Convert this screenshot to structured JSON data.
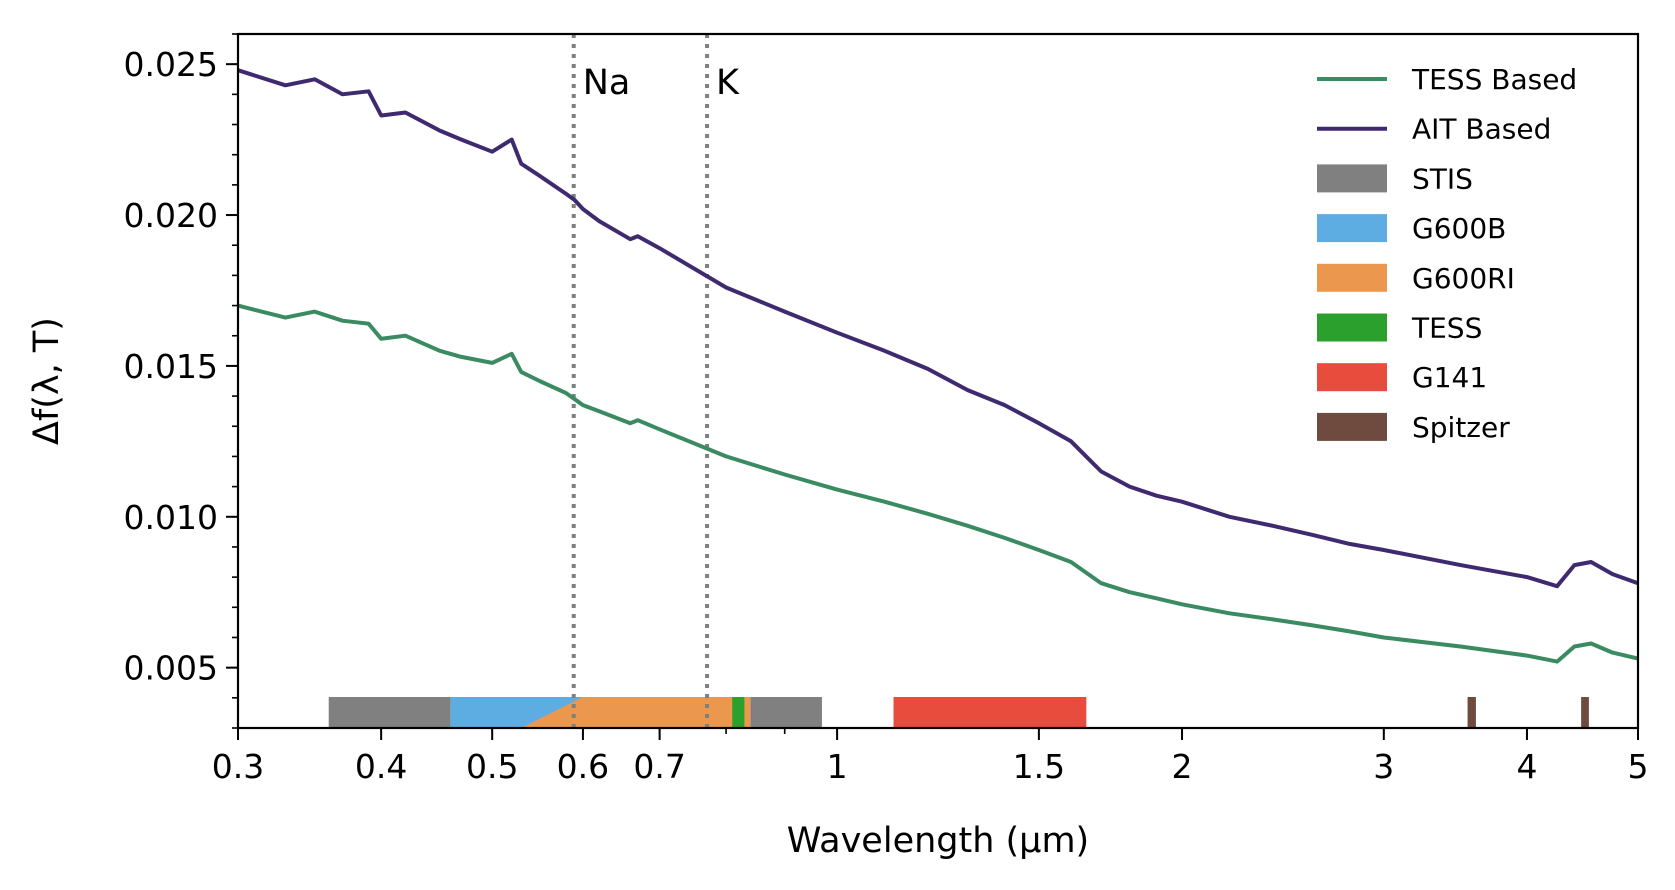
{
  "chart_data": {
    "type": "line",
    "title": "",
    "xlabel": "Wavelength (μm)",
    "ylabel": "Δf(λ, T)",
    "xscale": "log",
    "xlim": [
      0.3,
      5
    ],
    "ylim": [
      0.003,
      0.026
    ],
    "x_ticks": [
      0.3,
      0.4,
      0.5,
      0.6,
      0.7,
      1,
      1.5,
      2,
      3,
      4,
      5
    ],
    "x_tick_labels": [
      "0.3",
      "0.4",
      "0.5",
      "0.6",
      "0.7",
      "1",
      "1.5",
      "2",
      "3",
      "4",
      "5"
    ],
    "y_ticks": [
      0.005,
      0.01,
      0.015,
      0.02,
      0.025
    ],
    "y_tick_labels": [
      "0.005",
      "0.010",
      "0.015",
      "0.020",
      "0.025"
    ],
    "grid": false,
    "legend_position": "top-right",
    "series": [
      {
        "name": "AIT Based",
        "color": "#3f2a70",
        "x": [
          0.3,
          0.33,
          0.35,
          0.37,
          0.39,
          0.4,
          0.42,
          0.45,
          0.47,
          0.5,
          0.52,
          0.53,
          0.55,
          0.58,
          0.59,
          0.6,
          0.62,
          0.66,
          0.67,
          0.7,
          0.8,
          0.9,
          1.0,
          1.1,
          1.2,
          1.3,
          1.4,
          1.5,
          1.6,
          1.7,
          1.8,
          1.9,
          2.0,
          2.2,
          2.4,
          2.6,
          2.8,
          3.0,
          3.5,
          4.0,
          4.25,
          4.4,
          4.55,
          4.75,
          5.0
        ],
        "y": [
          0.0248,
          0.0243,
          0.0245,
          0.024,
          0.0241,
          0.0233,
          0.0234,
          0.0228,
          0.0225,
          0.0221,
          0.0225,
          0.0217,
          0.0213,
          0.0207,
          0.0205,
          0.0202,
          0.0198,
          0.0192,
          0.0193,
          0.0189,
          0.0176,
          0.0168,
          0.0161,
          0.0155,
          0.0149,
          0.0142,
          0.0137,
          0.0131,
          0.0125,
          0.0115,
          0.011,
          0.0107,
          0.0105,
          0.01,
          0.0097,
          0.0094,
          0.0091,
          0.0089,
          0.0084,
          0.008,
          0.0077,
          0.0084,
          0.0085,
          0.0081,
          0.0078
        ]
      },
      {
        "name": "TESS Based",
        "color": "#3a8a62",
        "x": [
          0.3,
          0.33,
          0.35,
          0.37,
          0.39,
          0.4,
          0.42,
          0.45,
          0.47,
          0.5,
          0.52,
          0.53,
          0.55,
          0.58,
          0.59,
          0.6,
          0.62,
          0.66,
          0.67,
          0.7,
          0.8,
          0.9,
          1.0,
          1.1,
          1.2,
          1.3,
          1.4,
          1.5,
          1.6,
          1.7,
          1.8,
          1.9,
          2.0,
          2.2,
          2.4,
          2.6,
          2.8,
          3.0,
          3.5,
          4.0,
          4.25,
          4.4,
          4.55,
          4.75,
          5.0
        ],
        "y": [
          0.017,
          0.0166,
          0.0168,
          0.0165,
          0.0164,
          0.0159,
          0.016,
          0.0155,
          0.0153,
          0.0151,
          0.0154,
          0.0148,
          0.0145,
          0.0141,
          0.0139,
          0.0137,
          0.0135,
          0.0131,
          0.0132,
          0.0129,
          0.012,
          0.0114,
          0.0109,
          0.0105,
          0.0101,
          0.0097,
          0.0093,
          0.0089,
          0.0085,
          0.0078,
          0.0075,
          0.0073,
          0.0071,
          0.0068,
          0.0066,
          0.0064,
          0.0062,
          0.006,
          0.0057,
          0.0054,
          0.0052,
          0.0057,
          0.0058,
          0.0055,
          0.0053
        ]
      }
    ],
    "vlines": [
      {
        "x": 0.589,
        "label": "Na"
      },
      {
        "x": 0.77,
        "label": "K"
      }
    ],
    "bandpasses": [
      {
        "name": "STIS",
        "color": "#808080",
        "ranges": [
          [
            0.36,
            0.46
          ],
          [
            0.84,
            0.97
          ]
        ]
      },
      {
        "name": "G600B",
        "color": "#5dade2",
        "ranges": [
          [
            0.46,
            0.6
          ]
        ]
      },
      {
        "name": "G600RI",
        "color": "#eb984e",
        "ranges": [
          [
            0.53,
            0.84
          ]
        ]
      },
      {
        "name": "TESS",
        "color": "#2ca02c",
        "ranges": [
          [
            0.81,
            0.83
          ]
        ]
      },
      {
        "name": "G141",
        "color": "#e74c3c",
        "ranges": [
          [
            1.12,
            1.65
          ]
        ]
      },
      {
        "name": "Spitzer",
        "color": "#6e4b3e",
        "ranges": [
          [
            3.55,
            3.61
          ],
          [
            4.46,
            4.53
          ]
        ]
      }
    ],
    "legend": [
      {
        "label": "TESS Based",
        "kind": "line",
        "color": "#3a8a62"
      },
      {
        "label": "AIT Based",
        "kind": "line",
        "color": "#3f2a70"
      },
      {
        "label": "STIS",
        "kind": "patch",
        "color": "#808080"
      },
      {
        "label": "G600B",
        "kind": "patch",
        "color": "#5dade2"
      },
      {
        "label": "G600RI",
        "kind": "patch",
        "color": "#eb984e"
      },
      {
        "label": "TESS",
        "kind": "patch",
        "color": "#2ca02c"
      },
      {
        "label": "G141",
        "kind": "patch",
        "color": "#e74c3c"
      },
      {
        "label": "Spitzer",
        "kind": "patch",
        "color": "#6e4b3e"
      }
    ]
  }
}
